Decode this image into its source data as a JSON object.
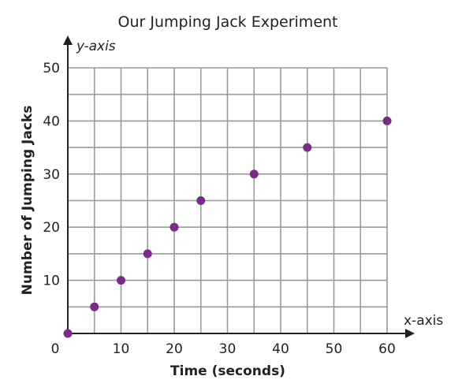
{
  "chart_data": {
    "type": "scatter",
    "title": "Our Jumping Jack Experiment",
    "xlabel": "Time (seconds)",
    "ylabel": "Number of Jumping Jacks",
    "x_axis_name": "x-axis",
    "y_axis_name": "y-axis",
    "xlim": [
      0,
      60
    ],
    "ylim": [
      0,
      50
    ],
    "x_ticks": [
      0,
      10,
      20,
      30,
      40,
      50,
      60
    ],
    "y_ticks": [
      10,
      20,
      30,
      40,
      50
    ],
    "grid": true,
    "x_grid_step": 5,
    "y_grid_step": 5,
    "point_color": "#7b2a8a",
    "points": [
      {
        "x": 0,
        "y": 0
      },
      {
        "x": 5,
        "y": 5
      },
      {
        "x": 10,
        "y": 10
      },
      {
        "x": 15,
        "y": 15
      },
      {
        "x": 20,
        "y": 20
      },
      {
        "x": 25,
        "y": 25
      },
      {
        "x": 35,
        "y": 30
      },
      {
        "x": 45,
        "y": 35
      },
      {
        "x": 60,
        "y": 40
      }
    ]
  }
}
